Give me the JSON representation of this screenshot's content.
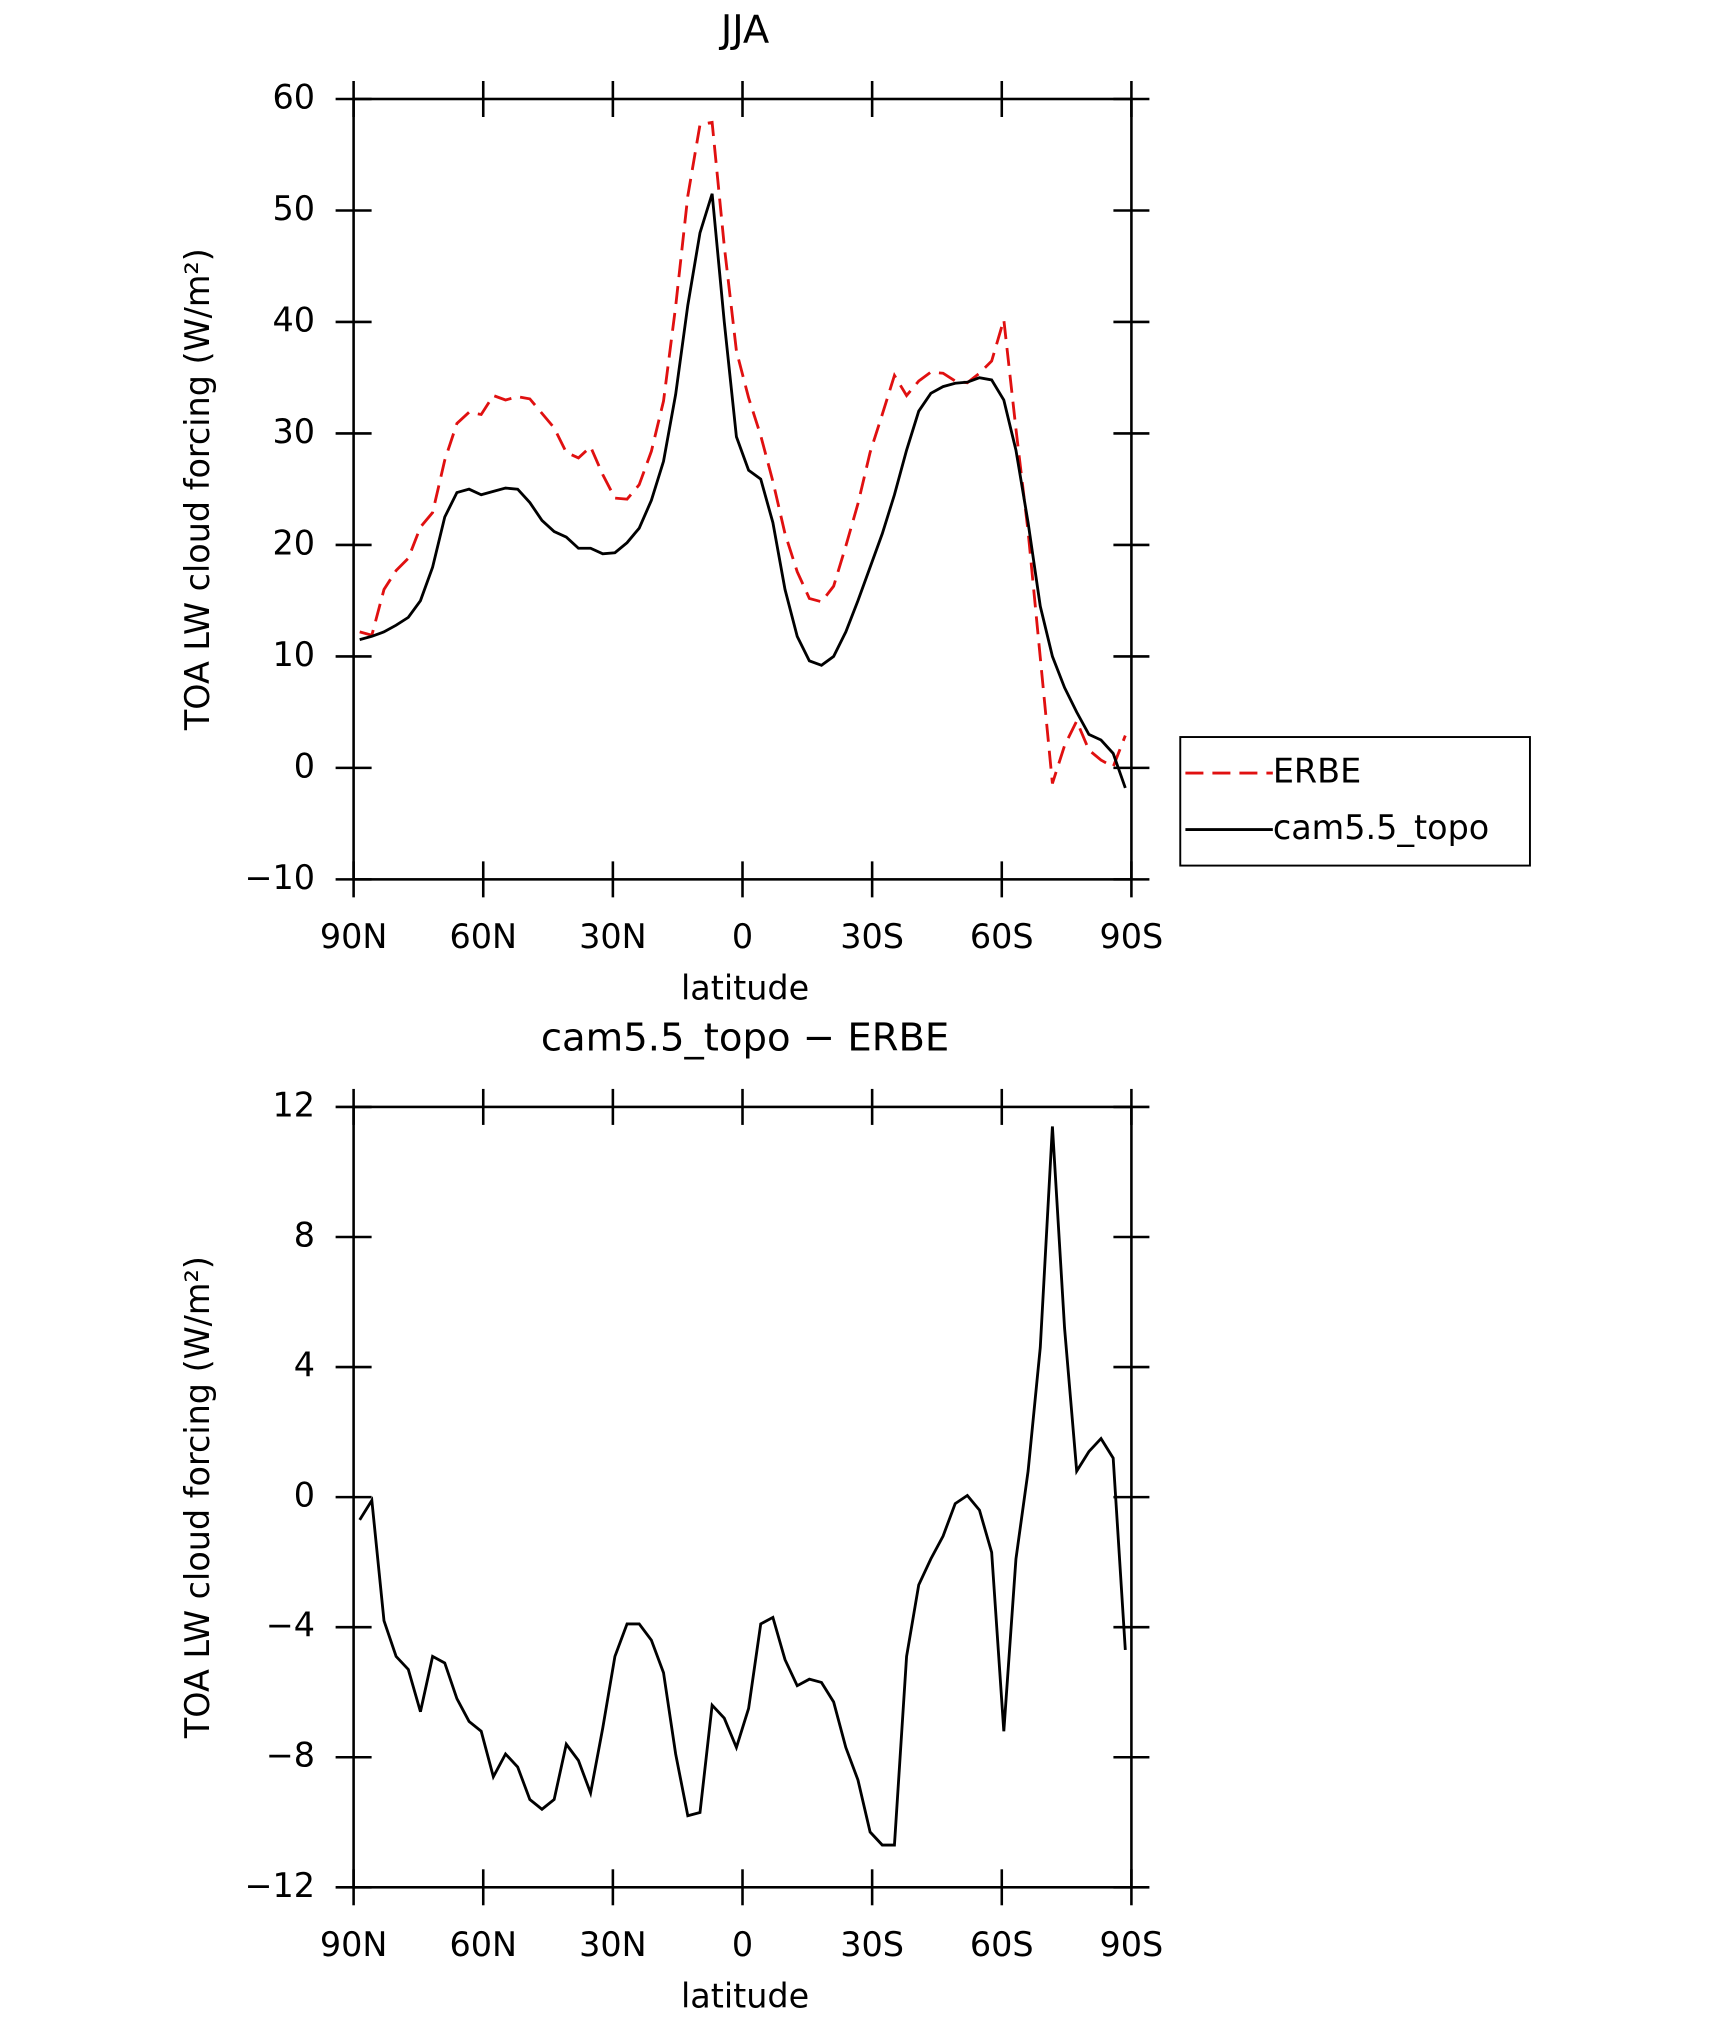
{
  "chart_data": [
    {
      "type": "line",
      "title": "JJA",
      "x_label": "latitude",
      "y_label": "TOA LW cloud forcing (W/m²)",
      "x": [
        88.59,
        85.78,
        82.97,
        80.16,
        77.34,
        74.53,
        71.72,
        68.91,
        66.09,
        63.28,
        60.47,
        57.66,
        54.84,
        52.03,
        49.22,
        46.41,
        43.59,
        40.78,
        37.97,
        35.16,
        32.34,
        29.53,
        26.72,
        23.91,
        21.09,
        18.28,
        15.47,
        12.66,
        9.84,
        7.03,
        4.22,
        1.41,
        -1.41,
        -4.22,
        -7.03,
        -9.84,
        -12.66,
        -15.47,
        -18.28,
        -21.09,
        -23.91,
        -26.72,
        -29.53,
        -32.34,
        -35.16,
        -37.97,
        -40.78,
        -43.59,
        -46.41,
        -49.22,
        -52.03,
        -54.84,
        -57.66,
        -60.47,
        -63.28,
        -66.09,
        -68.91,
        -71.72,
        -74.53,
        -77.34,
        -80.16,
        -82.97,
        -85.78,
        -88.59
      ],
      "series": [
        {
          "name": "ERBE",
          "color": "#e01010",
          "linestyle": "dashed",
          "values": [
            12.2,
            11.9,
            16,
            17.7,
            18.8,
            21.6,
            22.9,
            27.6,
            30.9,
            31.9,
            31.7,
            33.4,
            33,
            33.3,
            33.1,
            31.8,
            30.5,
            28.3,
            27.8,
            28.8,
            26.3,
            24.2,
            24.1,
            25.4,
            28.4,
            32.9,
            41.4,
            51.3,
            57.7,
            57.9,
            46.8,
            37.4,
            33.2,
            29.8,
            25.7,
            21,
            17.6,
            15.2,
            14.9,
            16.3,
            19.9,
            23.7,
            28.3,
            31.7,
            35.2,
            33.4,
            34.7,
            35.5,
            35.4,
            34.7,
            34.55,
            35.4,
            36.5,
            40.2,
            30.4,
            21.2,
            9.9,
            -1.4,
            2,
            4.2,
            1.6,
            0.7,
            0.1,
            2.9
          ]
        },
        {
          "name": "cam5.5_topo",
          "color": "#000000",
          "linestyle": "solid",
          "values": [
            11.5,
            11.8,
            12.2,
            12.8,
            13.5,
            15,
            18,
            22.5,
            24.7,
            25,
            24.5,
            24.8,
            25.1,
            25,
            23.8,
            22.2,
            21.2,
            20.7,
            19.7,
            19.7,
            19.2,
            19.3,
            20.2,
            21.5,
            24,
            27.5,
            33.5,
            41.5,
            48,
            51.5,
            40,
            29.7,
            26.7,
            25.9,
            22,
            16,
            11.8,
            9.6,
            9.2,
            10,
            12.2,
            15,
            18,
            21,
            24.5,
            28.5,
            32,
            33.6,
            34.2,
            34.5,
            34.6,
            35,
            34.8,
            33,
            28.5,
            22,
            14.5,
            10,
            7.2,
            5,
            3,
            2.5,
            1.3,
            -1.8
          ]
        }
      ],
      "xlim": [
        90,
        -90
      ],
      "xticks": [
        {
          "value": 90,
          "label": "90N"
        },
        {
          "value": 60,
          "label": "60N"
        },
        {
          "value": 30,
          "label": "30N"
        },
        0,
        {
          "value": -30,
          "label": "30S"
        },
        {
          "value": -60,
          "label": "60S"
        },
        {
          "value": -90,
          "label": "90S"
        }
      ],
      "ylim": [
        -10,
        60
      ],
      "yticks": [
        {
          "value": -10,
          "label": "−10"
        },
        0,
        10,
        20,
        30,
        40,
        50,
        60
      ],
      "legend": "right"
    },
    {
      "type": "line",
      "title": "cam5.5_topo − ERBE",
      "x_label": "latitude",
      "y_label": "TOA LW cloud forcing (W/m²)",
      "x": [
        88.59,
        85.78,
        82.97,
        80.16,
        77.34,
        74.53,
        71.72,
        68.91,
        66.09,
        63.28,
        60.47,
        57.66,
        54.84,
        52.03,
        49.22,
        46.41,
        43.59,
        40.78,
        37.97,
        35.16,
        32.34,
        29.53,
        26.72,
        23.91,
        21.09,
        18.28,
        15.47,
        12.66,
        9.84,
        7.03,
        4.22,
        1.41,
        -1.41,
        -4.22,
        -7.03,
        -9.84,
        -12.66,
        -15.47,
        -18.28,
        -21.09,
        -23.91,
        -26.72,
        -29.53,
        -32.34,
        -35.16,
        -37.97,
        -40.78,
        -43.59,
        -46.41,
        -49.22,
        -52.03,
        -54.84,
        -57.66,
        -60.47,
        -63.28,
        -66.09,
        -68.91,
        -71.72,
        -74.53,
        -77.34,
        -80.16,
        -82.97,
        -85.78,
        -88.59
      ],
      "series": [
        {
          "color": "#000000",
          "linestyle": "solid",
          "values": [
            -0.7,
            -0.1,
            -3.8,
            -4.9,
            -5.3,
            -6.6,
            -4.9,
            -5.1,
            -6.2,
            -6.9,
            -7.2,
            -8.6,
            -7.9,
            -8.3,
            -9.3,
            -9.6,
            -9.3,
            -7.6,
            -8.1,
            -9.1,
            -7.1,
            -4.9,
            -3.9,
            -3.9,
            -4.4,
            -5.4,
            -7.9,
            -9.8,
            -9.7,
            -6.4,
            -6.8,
            -7.7,
            -6.5,
            -3.9,
            -3.7,
            -5,
            -5.8,
            -5.6,
            -5.7,
            -6.3,
            -7.7,
            -8.7,
            -10.3,
            -10.7,
            -10.7,
            -4.9,
            -2.7,
            -1.9,
            -1.2,
            -0.2,
            0.05,
            -0.4,
            -1.7,
            -7.2,
            -1.9,
            0.8,
            4.6,
            11.4,
            5.2,
            0.8,
            1.4,
            1.8,
            1.2,
            -4.7
          ]
        }
      ],
      "xlim": [
        90,
        -90
      ],
      "xticks": [
        {
          "value": 90,
          "label": "90N"
        },
        {
          "value": 60,
          "label": "60N"
        },
        {
          "value": 30,
          "label": "30N"
        },
        0,
        {
          "value": -30,
          "label": "30S"
        },
        {
          "value": -60,
          "label": "60S"
        },
        {
          "value": -90,
          "label": "90S"
        }
      ],
      "ylim": [
        -12,
        12
      ],
      "yticks": [
        {
          "value": -12,
          "label": "−12"
        },
        {
          "value": -8,
          "label": "−8"
        },
        {
          "value": -4,
          "label": "−4"
        },
        0,
        4,
        8,
        12
      ]
    }
  ]
}
